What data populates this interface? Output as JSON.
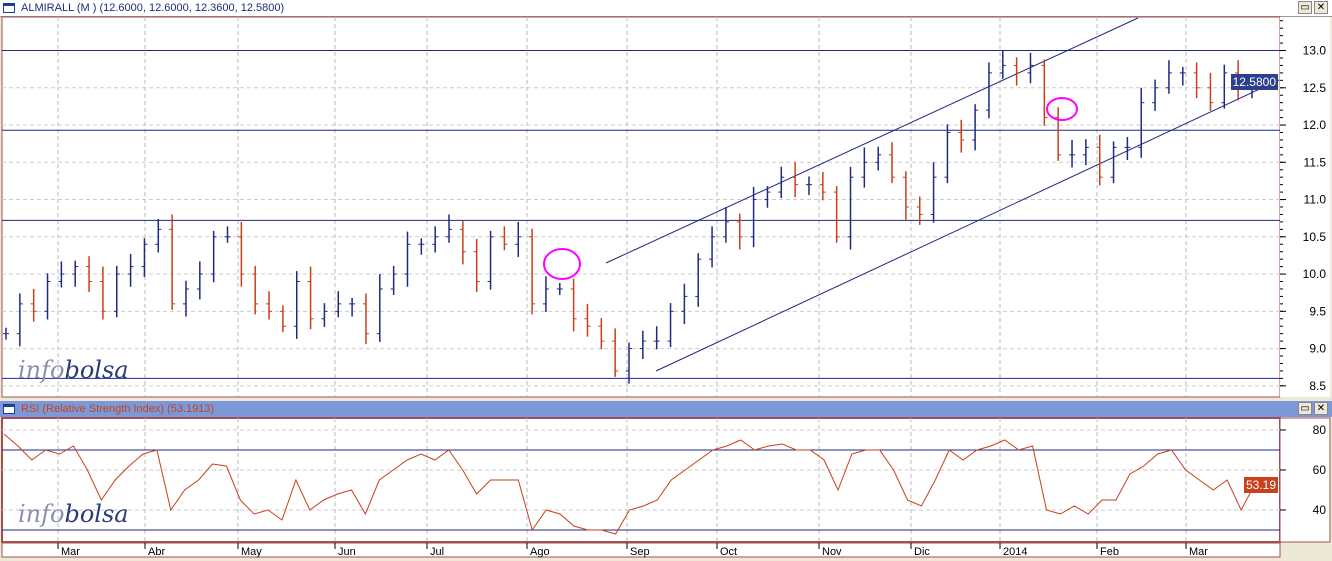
{
  "price_panel": {
    "title": "ALMIRALL (M ) (12.6000, 12.6000, 12.3600, 12.5800)",
    "last_label": "12.5800",
    "watermark_a": "info",
    "watermark_b": "bolsa",
    "y_ticks": [
      "8.5",
      "9.0",
      "9.5",
      "10.0",
      "10.5",
      "11.0",
      "11.5",
      "12.0",
      "12.5",
      "13.0"
    ],
    "y_range": [
      8.35,
      13.45
    ],
    "closes": [
      9.2,
      9.6,
      9.5,
      9.9,
      10.0,
      10.1,
      9.9,
      9.5,
      10.0,
      10.1,
      10.4,
      10.6,
      9.6,
      9.8,
      10.0,
      10.5,
      10.5,
      10.0,
      9.6,
      9.5,
      9.3,
      9.9,
      9.4,
      9.5,
      9.6,
      9.6,
      9.2,
      9.8,
      10.0,
      10.4,
      10.4,
      10.5,
      10.6,
      10.3,
      9.9,
      10.5,
      10.4,
      10.5,
      9.6,
      9.8,
      9.8,
      9.4,
      9.3,
      9.1,
      8.7,
      9.0,
      9.1,
      9.1,
      9.5,
      9.7,
      10.2,
      10.5,
      10.7,
      10.5,
      11.0,
      11.1,
      11.3,
      11.2,
      11.2,
      11.1,
      10.5,
      11.3,
      11.5,
      11.6,
      11.3,
      10.9,
      10.8,
      11.3,
      11.9,
      11.8,
      12.2,
      12.7,
      12.8,
      12.7,
      12.8,
      12.1,
      11.6,
      11.6,
      11.7,
      11.3,
      11.7,
      11.7,
      12.3,
      12.5,
      12.7,
      12.7,
      12.5,
      12.3,
      12.7,
      12.5,
      12.58
    ],
    "horizontal_levels": [
      13.0,
      11.93,
      10.72,
      8.6
    ],
    "line_color": "#1f2a80",
    "down_color": "#c8401c",
    "up_color": "#1f2a80",
    "highlight_color": "#ff00ff"
  },
  "rsi_panel": {
    "title": "RSI (Relative Strength Index) (53.1913)",
    "last_label": "53.19",
    "watermark_a": "info",
    "watermark_b": "bolsa",
    "y_ticks": [
      "40",
      "60",
      "80"
    ],
    "y_range": [
      24,
      86
    ],
    "levels": [
      70,
      30
    ],
    "values": [
      78,
      72,
      65,
      70,
      68,
      72,
      60,
      45,
      55,
      62,
      68,
      70,
      40,
      50,
      55,
      63,
      62,
      45,
      38,
      40,
      35,
      55,
      40,
      45,
      48,
      50,
      38,
      55,
      60,
      65,
      68,
      65,
      70,
      60,
      48,
      55,
      55,
      55,
      30,
      40,
      38,
      32,
      30,
      30,
      28,
      40,
      42,
      45,
      55,
      60,
      65,
      70,
      72,
      75,
      70,
      72,
      73,
      70,
      70,
      65,
      50,
      68,
      70,
      70,
      60,
      45,
      42,
      55,
      70,
      65,
      70,
      72,
      75,
      70,
      72,
      40,
      38,
      42,
      38,
      45,
      45,
      58,
      62,
      68,
      70,
      60,
      55,
      50,
      55,
      40,
      53
    ]
  },
  "x_axis": {
    "months": [
      "Mar",
      "Abr",
      "May",
      "Jun",
      "Jul",
      "Ago",
      "Sep",
      "Oct",
      "Nov",
      "Dic",
      "2014",
      "Feb",
      "Mar"
    ]
  },
  "window_buttons": {
    "restore": "▭",
    "close": "✕"
  }
}
